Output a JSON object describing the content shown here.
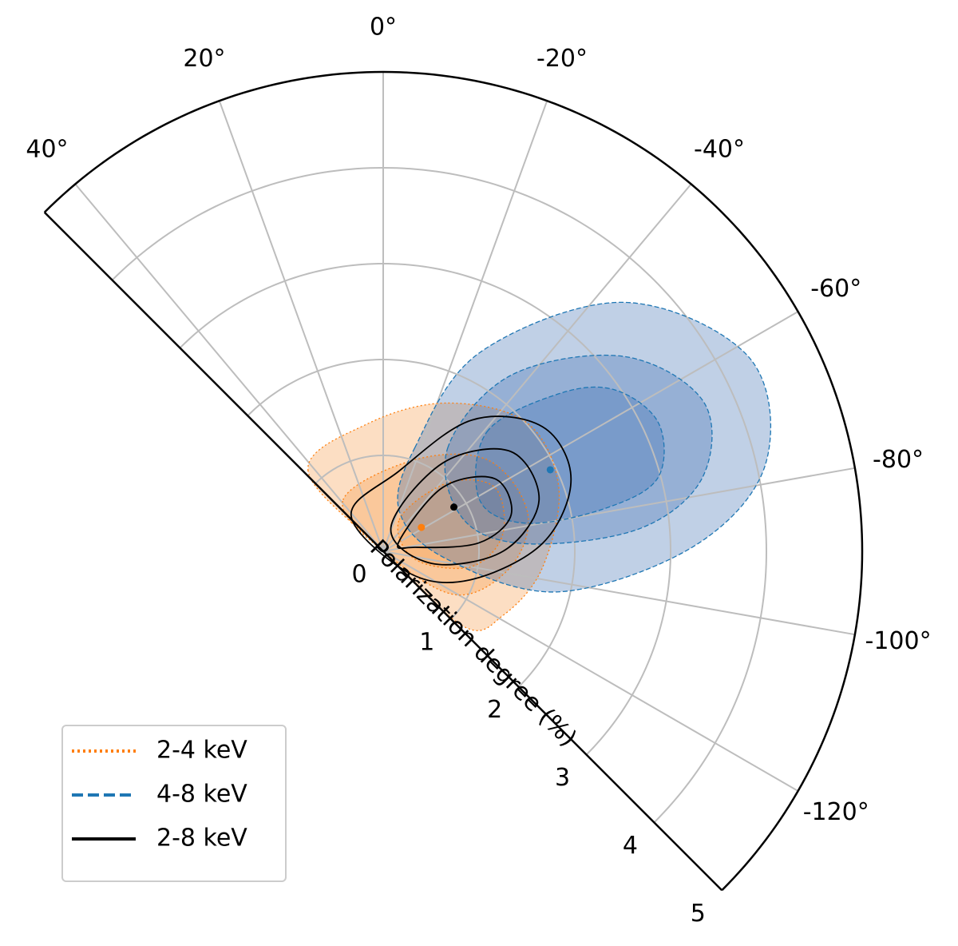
{
  "chart_data": {
    "type": "polar",
    "thetalim": [
      -135,
      45
    ],
    "rlim": [
      0,
      5
    ],
    "thetaticks": [
      {
        "value": 40,
        "label": "40°"
      },
      {
        "value": 20,
        "label": "20°"
      },
      {
        "value": 0,
        "label": "0°"
      },
      {
        "value": -20,
        "label": "-20°"
      },
      {
        "value": -40,
        "label": "-40°"
      },
      {
        "value": -60,
        "label": "-60°"
      },
      {
        "value": -80,
        "label": "-80°"
      },
      {
        "value": -100,
        "label": "-100°"
      },
      {
        "value": -120,
        "label": "-120°"
      }
    ],
    "rticks": [
      0,
      1,
      2,
      3,
      4,
      5
    ],
    "r_label": "Polarization degree (%)",
    "grid": true,
    "legend": "lower left",
    "series": [
      {
        "name": "2-4 keV",
        "color": "#ff7f0e",
        "fill": "#f79a4a",
        "linestyle": "dotted",
        "theta": -58,
        "r": 0.47,
        "contours": [
          {
            "theta": [
              43,
              7,
              -23,
              -48,
              -70,
              -96,
              -118,
              -133,
              -45
            ],
            "r": [
              1.15,
              1.34,
              1.68,
              2.01,
              1.95,
              1.67,
              1.42,
              1.15,
              0
            ]
          },
          {
            "theta": [
              38,
              -19,
              -49,
              -75,
              -97,
              -121,
              -45
            ],
            "r": [
              0.68,
              1.01,
              1.45,
              1.56,
              1.34,
              0.88,
              0
            ]
          },
          {
            "theta": [
              -27,
              -43,
              -60,
              -82,
              -100,
              -104
            ],
            "r": [
              0.37,
              0.97,
              1.34,
              1.26,
              0.93,
              0.34
            ]
          }
        ]
      },
      {
        "name": "4-8 keV",
        "color": "#1f77b4",
        "fill": "#3f6fb3",
        "linestyle": "dashed",
        "theta": -64,
        "r": 1.94,
        "contours": [
          {
            "theta": [
              -17,
              -26,
              -44,
              -62,
              -77,
              -89,
              -103,
              -97,
              -22
            ],
            "r": [
              1.13,
              2.31,
              3.61,
              4.32,
              4.1,
              3.25,
              1.88,
              0.67,
              0.45
            ]
          },
          {
            "theta": [
              -32,
              -36,
              -51,
              -65,
              -77,
              -85,
              -87,
              -68
            ],
            "r": [
              1.27,
              2.27,
              3.23,
              3.69,
              3.42,
              2.68,
              1.5,
              0.9
            ]
          },
          {
            "theta": [
              -41,
              -48,
              -55,
              -65,
              -75,
              -79,
              -79,
              -62
            ],
            "r": [
              1.65,
              2.45,
              2.94,
              3.17,
              2.97,
              2.38,
              1.53,
              1.14
            ]
          }
        ]
      },
      {
        "name": "2-8 keV",
        "color": "#000000",
        "linestyle": "solid",
        "theta": -58,
        "r": 0.87,
        "contours": [
          {
            "theta": [
              42,
              -11,
              -34,
              -52,
              -69,
              -87,
              -108,
              -130
            ],
            "r": [
              0.5,
              0.85,
              1.65,
              2.11,
              2.1,
              1.67,
              0.96,
              0.35
            ]
          },
          {
            "theta": [
              -18,
              -34,
              -52,
              -72,
              -90,
              -104
            ],
            "r": [
              0.26,
              1.11,
              1.69,
              1.71,
              1.25,
              0.52
            ]
          },
          {
            "theta": [
              -59,
              -43,
              -57,
              -74,
              -85,
              -83
            ],
            "r": [
              0.19,
              0.91,
              1.39,
              1.39,
              1.0,
              0.34
            ]
          }
        ]
      }
    ]
  }
}
